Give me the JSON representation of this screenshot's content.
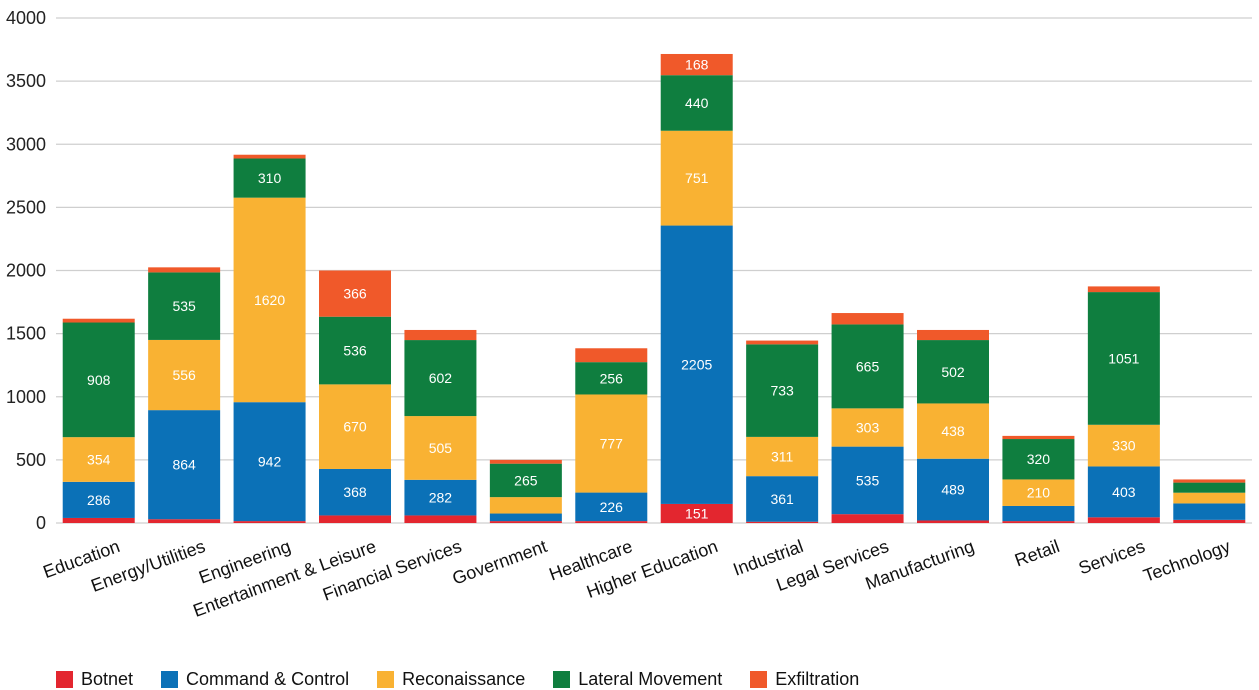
{
  "chart_data": {
    "type": "bar",
    "stacked": true,
    "title": "",
    "xlabel": "",
    "ylabel": "",
    "ylim": [
      0,
      4000
    ],
    "yticks": [
      0,
      500,
      1000,
      1500,
      2000,
      2500,
      3000,
      3500,
      4000
    ],
    "grid": true,
    "legend_position": "bottom-left",
    "categories": [
      "Education",
      "Energy/Utilities",
      "Engineering",
      "Entertainment & Leisure",
      "Financial Services",
      "Government",
      "Healthcare",
      "Higher Education",
      "Industrial",
      "Legal Services",
      "Manufacturing",
      "Retail",
      "Services",
      "Technology"
    ],
    "series": [
      {
        "name": "Botnet",
        "color": "#e3262f",
        "values": [
          40,
          30,
          15,
          60,
          60,
          15,
          15,
          151,
          10,
          70,
          20,
          15,
          45,
          25
        ],
        "labels": [
          null,
          null,
          null,
          null,
          null,
          null,
          null,
          "151",
          null,
          null,
          null,
          null,
          null,
          null
        ]
      },
      {
        "name": "Command & Control",
        "color": "#0b71b7",
        "values": [
          286,
          864,
          942,
          368,
          282,
          60,
          226,
          2205,
          361,
          535,
          489,
          120,
          403,
          130
        ],
        "labels": [
          "286",
          "864",
          "942",
          "368",
          "282",
          null,
          "226",
          "2205",
          "361",
          "535",
          "489",
          null,
          "403",
          null
        ]
      },
      {
        "name": "Reconaissance",
        "color": "#f9b233",
        "values": [
          354,
          556,
          1620,
          670,
          505,
          130,
          777,
          751,
          311,
          303,
          438,
          210,
          330,
          85
        ],
        "labels": [
          "354",
          "556",
          "1620",
          "670",
          "505",
          null,
          "777",
          "751",
          "311",
          "303",
          "438",
          "210",
          "330",
          null
        ]
      },
      {
        "name": "Lateral Movement",
        "color": "#0f7e3f",
        "values": [
          908,
          535,
          310,
          536,
          602,
          265,
          256,
          440,
          733,
          665,
          502,
          320,
          1051,
          80
        ],
        "labels": [
          "908",
          "535",
          "310",
          "536",
          "602",
          "265",
          "256",
          "440",
          "733",
          "665",
          "502",
          "320",
          "1051",
          null
        ]
      },
      {
        "name": "Exfiltration",
        "color": "#f0592a",
        "values": [
          30,
          40,
          30,
          366,
          80,
          30,
          110,
          168,
          30,
          90,
          80,
          25,
          45,
          25
        ],
        "labels": [
          null,
          null,
          null,
          "366",
          null,
          null,
          null,
          "168",
          null,
          null,
          null,
          null,
          null,
          null
        ]
      }
    ]
  }
}
